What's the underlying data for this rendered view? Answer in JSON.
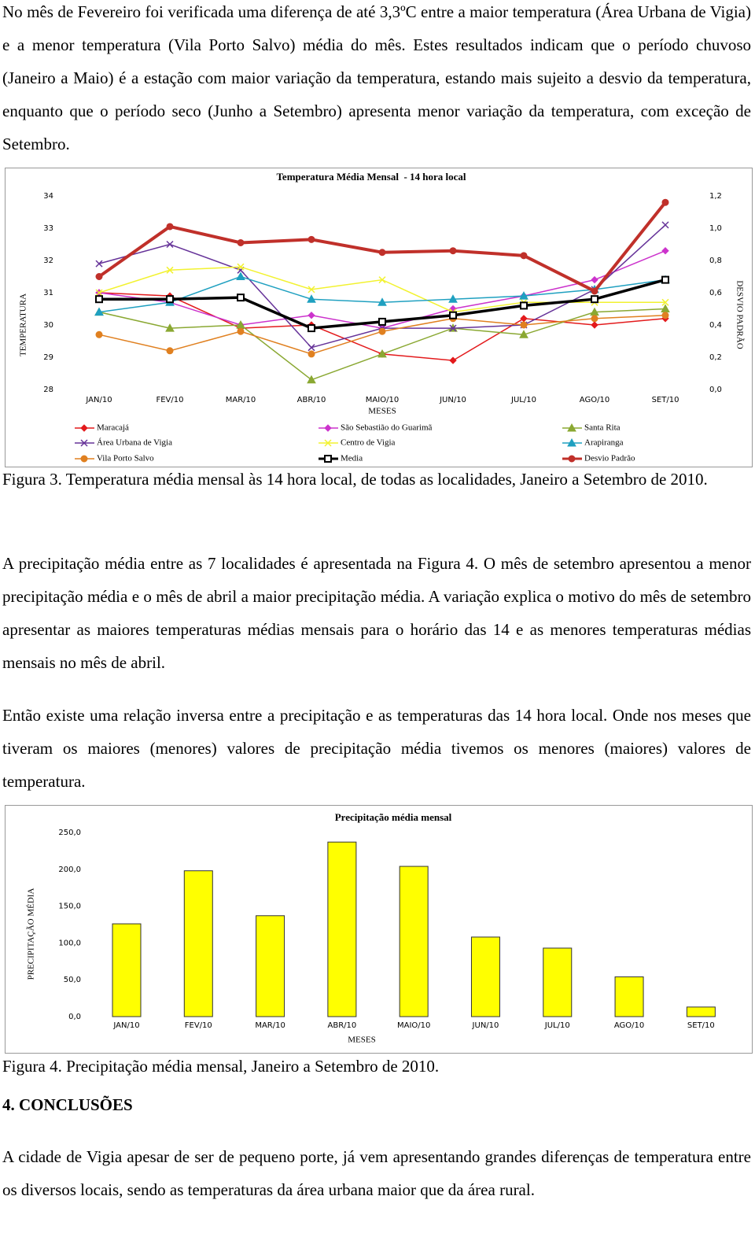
{
  "paragraphs": [
    "No mês de Fevereiro foi verificada uma diferença de até 3,3ºC entre a maior temperatura (Área Urbana de Vigia) e a menor temperatura (Vila Porto Salvo) média do mês. Estes resultados indicam que o período chuvoso (Janeiro a Maio) é a estação com maior variação da temperatura, estando mais sujeito a desvio da temperatura, enquanto que o período seco (Junho a Setembro) apresenta menor variação da temperatura, com exceção de Setembro.",
    "A precipitação média entre as 7 localidades é apresentada na Figura 4. O mês de setembro apresentou a menor precipitação média e o mês de abril a maior precipitação média. A variação explica o motivo do mês de setembro apresentar as maiores temperaturas médias mensais para o horário das 14 e as menores temperaturas médias mensais no mês de abril.",
    "Então existe uma relação inversa entre a precipitação e as temperaturas das 14 hora local. Onde nos meses que tiveram os maiores (menores) valores de precipitação média tivemos os menores (maiores) valores de temperatura.",
    "A cidade de Vigia apesar de ser de pequeno porte, já vem apresentando grandes diferenças de temperatura entre os diversos locais, sendo as temperaturas da área urbana maior que da área rural."
  ],
  "captions": [
    "Figura 3. Temperatura média mensal às 14 hora local, de todas as localidades, Janeiro a Setembro de 2010.",
    "Figura 4. Precipitação média mensal, Janeiro a Setembro de 2010."
  ],
  "section_title": "4. CONCLUSÕES",
  "chart_data": [
    {
      "type": "line",
      "title": "Temperatura Média Mensal  - 14 hora local",
      "x_label": "MESES",
      "y_label": "TEMPERATURA",
      "y2_label": "DESVIO PADRÃO",
      "categories": [
        "JAN/10",
        "FEV/10",
        "MAR/10",
        "ABR/10",
        "MAIO/10",
        "JUN/10",
        "JUL/10",
        "AGO/10",
        "SET/10"
      ],
      "ylim": [
        28,
        34
      ],
      "yticks": [
        28,
        29,
        30,
        31,
        32,
        33,
        34
      ],
      "y2lim": [
        0,
        1.2
      ],
      "y2ticks": [
        {
          "value": 0,
          "label": "0,0"
        },
        {
          "value": 0.2,
          "label": "0,2"
        },
        {
          "value": 0.4,
          "label": "0,4"
        },
        {
          "value": 0.6,
          "label": "0,6"
        },
        {
          "value": 0.8,
          "label": "0,8"
        },
        {
          "value": 1.0,
          "label": "1,0"
        },
        {
          "value": 1.2,
          "label": "1,2"
        }
      ],
      "series": [
        {
          "name": "Maracajá",
          "color": "#e31a1c",
          "marker": "diamond",
          "line_width": 1.5,
          "values": [
            31.0,
            30.9,
            29.9,
            30.0,
            29.1,
            28.9,
            30.2,
            30.0,
            30.2
          ]
        },
        {
          "name": "São Sebastião do Guarimã",
          "color": "#cc33cc",
          "marker": "diamond",
          "line_width": 1.5,
          "values": [
            31.0,
            30.7,
            30.0,
            30.3,
            29.9,
            30.5,
            30.9,
            31.4,
            32.3
          ]
        },
        {
          "name": "Santa Rita",
          "color": "#8aa832",
          "marker": "triangle",
          "line_width": 1.5,
          "values": [
            30.4,
            29.9,
            30.0,
            28.3,
            29.1,
            29.9,
            29.7,
            30.4,
            30.5
          ]
        },
        {
          "name": "Área Urbana de Vigia",
          "color": "#663399",
          "marker": "x",
          "line_width": 1.5,
          "values": [
            31.9,
            32.5,
            31.7,
            29.3,
            29.9,
            29.9,
            30.0,
            31.1,
            33.1
          ]
        },
        {
          "name": "Centro de Vigia",
          "color": "#f2f230",
          "marker": "x",
          "line_width": 1.5,
          "values": [
            31.0,
            31.7,
            31.8,
            31.1,
            31.4,
            30.4,
            30.7,
            30.7,
            30.7
          ]
        },
        {
          "name": "Arapiranga",
          "color": "#1fa0c0",
          "marker": "triangle",
          "line_width": 1.5,
          "values": [
            30.4,
            30.7,
            31.5,
            30.8,
            30.7,
            30.8,
            30.9,
            31.1,
            31.4
          ]
        },
        {
          "name": "Vila Porto Salvo",
          "color": "#e08020",
          "marker": "circle",
          "line_width": 1.5,
          "values": [
            29.7,
            29.2,
            29.8,
            29.1,
            29.8,
            30.2,
            30.0,
            30.2,
            30.3
          ]
        },
        {
          "name": "Media",
          "color": "#000000",
          "marker": "square",
          "line_width": 3.5,
          "values": [
            30.8,
            30.8,
            30.85,
            29.9,
            30.1,
            30.3,
            30.6,
            30.8,
            31.4
          ]
        },
        {
          "name": "Desvio Padrão",
          "color": "#c0302a",
          "marker": "circle",
          "line_width": 4,
          "axis": "y2",
          "values": [
            0.7,
            1.01,
            0.91,
            0.93,
            0.85,
            0.86,
            0.83,
            0.61,
            1.16
          ]
        }
      ]
    },
    {
      "type": "bar",
      "title": "Precipitação média mensal",
      "x_label": "MESES",
      "y_label": "PRECIPITAÇÃO MÉDIA",
      "categories": [
        "JAN/10",
        "FEV/10",
        "MAR/10",
        "ABR/10",
        "MAIO/10",
        "JUN/10",
        "JUL/10",
        "AGO/10",
        "SET/10"
      ],
      "values": [
        126,
        198,
        137,
        237,
        204,
        108,
        93,
        54,
        13
      ],
      "color": "#ffff00",
      "ylim": [
        0,
        250
      ],
      "yticks": [
        {
          "value": 0,
          "label": "0,0"
        },
        {
          "value": 50,
          "label": "50,0"
        },
        {
          "value": 100,
          "label": "100,0"
        },
        {
          "value": 150,
          "label": "150,0"
        },
        {
          "value": 200,
          "label": "200,0"
        },
        {
          "value": 250,
          "label": "250,0"
        }
      ]
    }
  ]
}
